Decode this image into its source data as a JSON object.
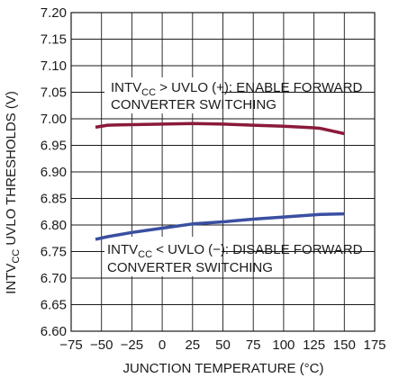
{
  "chart_data": {
    "type": "line",
    "title": "",
    "xlabel": "JUNCTION TEMPERATURE (°C)",
    "ylabel": {
      "main": "INTV",
      "sub": "CC",
      "rest": " UVLO THRESHOLDS (V)"
    },
    "xlim": [
      -75,
      175
    ],
    "ylim": [
      6.6,
      7.2
    ],
    "x_ticks": [
      -75,
      -50,
      -25,
      0,
      25,
      50,
      75,
      100,
      125,
      150,
      175
    ],
    "x_tick_labels": [
      "−75",
      "−50",
      "−25",
      "0",
      "25",
      "50",
      "75",
      "100",
      "125",
      "150",
      "175"
    ],
    "y_ticks": [
      6.6,
      6.65,
      6.7,
      6.75,
      6.8,
      6.85,
      6.9,
      6.95,
      7.0,
      7.05,
      7.1,
      7.15,
      7.2
    ],
    "y_tick_labels": [
      "6.60",
      "6.65",
      "6.70",
      "6.75",
      "6.80",
      "6.85",
      "6.90",
      "6.95",
      "7.00",
      "7.05",
      "7.10",
      "7.15",
      "7.20"
    ],
    "grid": true,
    "series": [
      {
        "color": "#8b1a3a",
        "x": [
          -55,
          -45,
          -25,
          0,
          25,
          50,
          75,
          100,
          125,
          130,
          150
        ],
        "y": [
          6.984,
          6.988,
          6.989,
          6.99,
          6.991,
          6.99,
          6.988,
          6.986,
          6.983,
          6.982,
          6.972
        ]
      },
      {
        "color": "#3a4fa0",
        "x": [
          -55,
          -45,
          -25,
          0,
          25,
          50,
          75,
          100,
          125,
          130,
          150
        ],
        "y": [
          6.773,
          6.778,
          6.786,
          6.794,
          6.802,
          6.806,
          6.811,
          6.815,
          6.819,
          6.82,
          6.821
        ]
      }
    ],
    "annotations": [
      {
        "line1": {
          "pre": "INTV",
          "sub": "CC",
          "post": " > UVLO (+): ENABLE FORWARD"
        },
        "line2": "CONVERTER SWITCHING"
      },
      {
        "line1": {
          "pre": "INTV",
          "sub": "CC",
          "post": " < UVLO (−): DISABLE FORWARD"
        },
        "line2": "CONVERTER SWITCHING"
      }
    ]
  }
}
